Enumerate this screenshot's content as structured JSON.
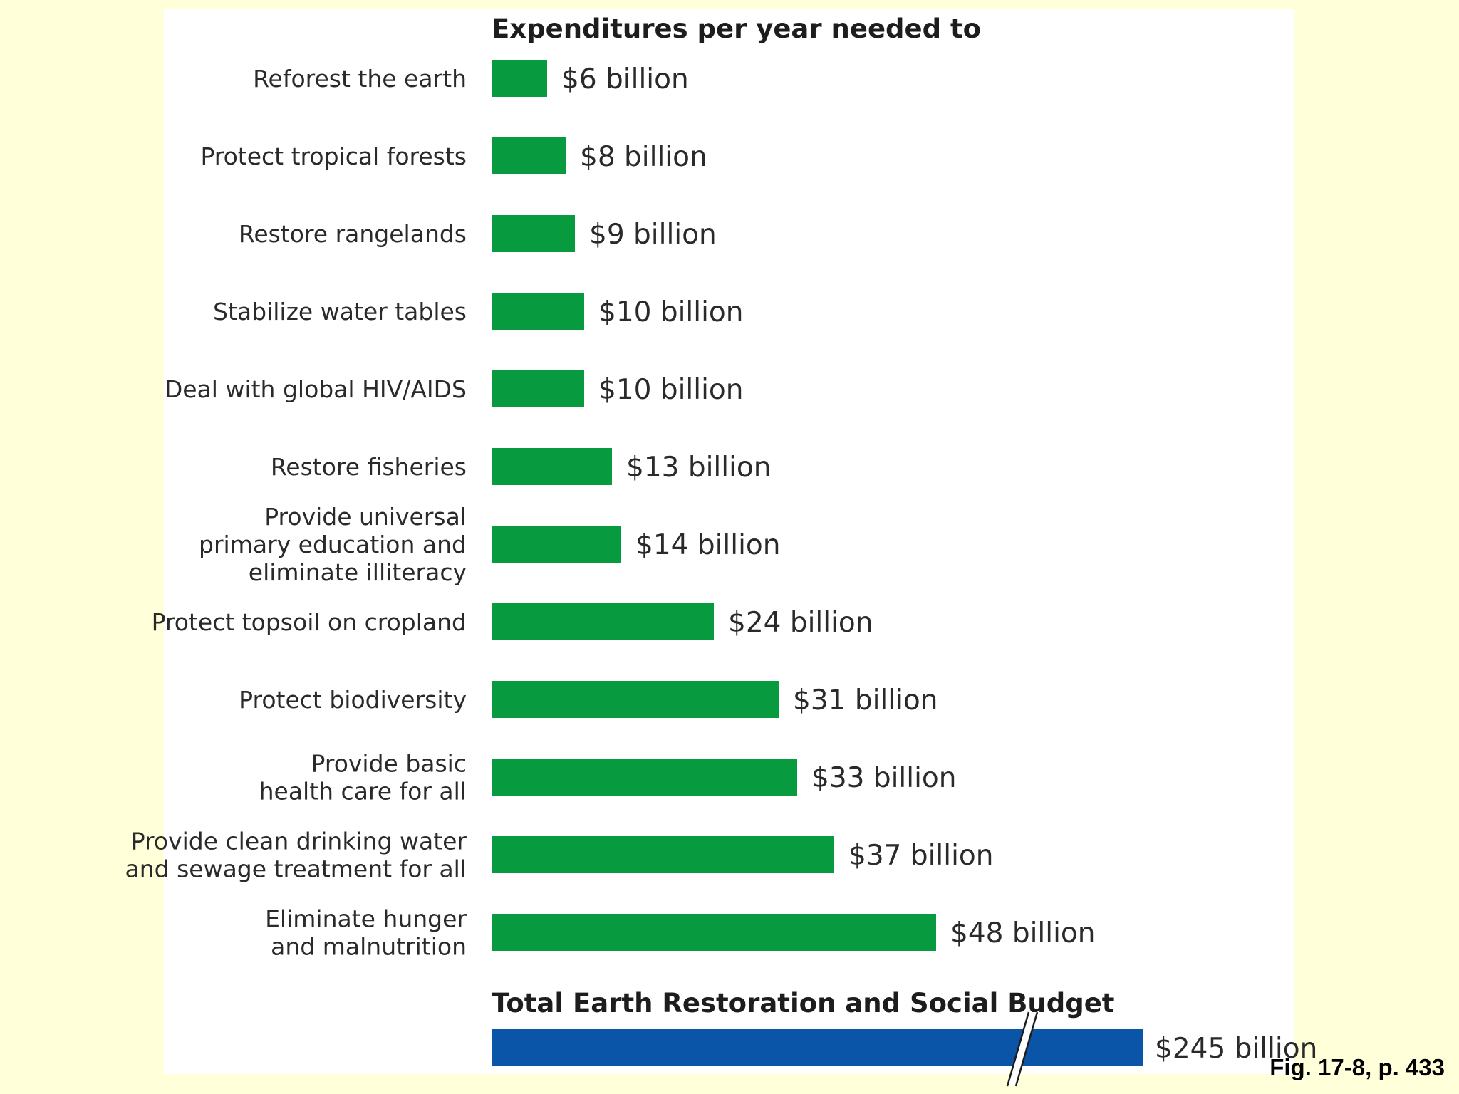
{
  "figure_caption": "Fig. 17-8, p. 433",
  "colors": {
    "page_background": "#FFFFD9",
    "panel_background": "#FFFFFF",
    "bar_green": "#079A3E",
    "bar_blue": "#0A55A8"
  },
  "chart_data": {
    "type": "bar",
    "orientation": "horizontal",
    "title": "Expenditures per year needed to",
    "categories": [
      [
        "Reforest the earth"
      ],
      [
        "Protect tropical forests"
      ],
      [
        "Restore rangelands"
      ],
      [
        "Stabilize water tables"
      ],
      [
        "Deal with global HIV/AIDS"
      ],
      [
        "Restore fisheries"
      ],
      [
        "Provide universal",
        "primary education and",
        "eliminate illiteracy"
      ],
      [
        "Protect topsoil on cropland"
      ],
      [
        "Protect biodiversity"
      ],
      [
        "Provide basic",
        "health care for all"
      ],
      [
        "Provide clean drinking water",
        "and sewage treatment for all"
      ],
      [
        "Eliminate hunger",
        "and malnutrition"
      ]
    ],
    "values": [
      6,
      8,
      9,
      10,
      10,
      13,
      14,
      24,
      31,
      33,
      37,
      48
    ],
    "value_labels": [
      "$6 billion",
      "$8 billion",
      "$9 billion",
      "$10 billion",
      "$10 billion",
      "$13 billion",
      "$14 billion",
      "$24 billion",
      "$31 billion",
      "$33 billion",
      "$37 billion",
      "$48 billion"
    ],
    "unit": "billion USD",
    "total": {
      "title": "Total Earth Restoration and Social Budget",
      "value": 245,
      "value_label": "$245 billion",
      "axis_break": true
    },
    "grid": false,
    "legend": "none"
  }
}
